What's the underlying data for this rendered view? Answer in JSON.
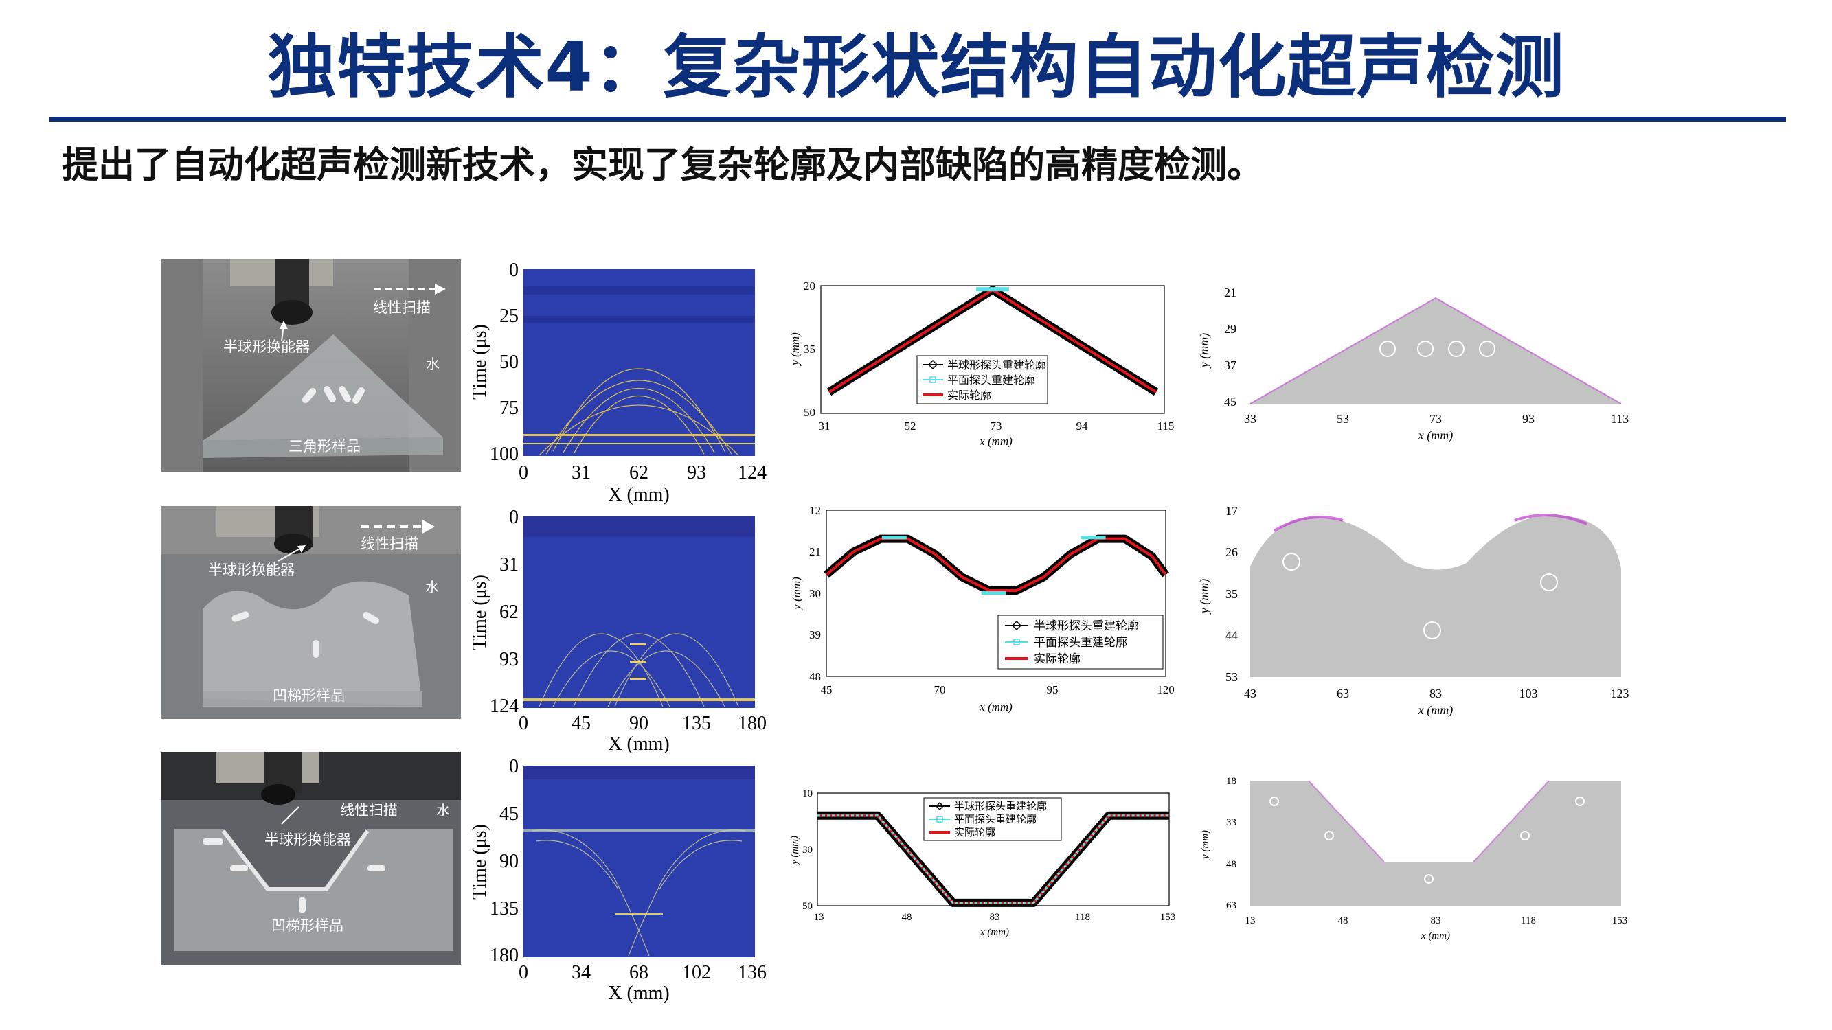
{
  "slide": {
    "title": "独特技术4：复杂形状结构自动化超声检测",
    "subtitle": "提出了自动化超声检测新技术，实现了复杂轮廓及内部缺陷的高精度检测。"
  },
  "colors": {
    "title": "#0b2f7a",
    "rule": "#0b2f7a",
    "bscan_bg": "#2c3dad",
    "actual_profile": "#e0151b",
    "planar_probe": "#4fe3e8",
    "defect": "#c23ad6"
  },
  "rows": [
    {
      "photo": {
        "scan_label": "线性扫描",
        "probe_label": "半球形换能器",
        "water_label": "水",
        "sample_label": "三角形样品"
      },
      "bscan": {
        "xlabel": "X (mm)",
        "ylabel": "Time (μs)",
        "xticks": [
          "0",
          "31",
          "62",
          "93",
          "124"
        ],
        "yticks": [
          "0",
          "25",
          "50",
          "75",
          "100"
        ]
      },
      "chart_data": {
        "type": "line",
        "xlabel": "x (mm)",
        "ylabel": "y (mm)",
        "xticks": [
          "31",
          "52",
          "73",
          "94",
          "115"
        ],
        "yticks": [
          "20",
          "35",
          "50"
        ],
        "xlim": [
          31,
          115
        ],
        "ylim": [
          50,
          20
        ],
        "series": [
          {
            "name": "半球形探头重建轮廓",
            "x": [
              33,
              73,
              113
            ],
            "y": [
              45,
              21,
              45
            ]
          },
          {
            "name": "平面探头重建轮廓",
            "x": [
              69,
              77
            ],
            "y": [
              21,
              21
            ]
          },
          {
            "name": "实际轮廓",
            "x": [
              33,
              73,
              113
            ],
            "y": [
              45,
              21,
              45
            ]
          }
        ]
      },
      "image": {
        "xlabel": "x (mm)",
        "ylabel": "y (mm)",
        "xticks": [
          "33",
          "53",
          "73",
          "93",
          "113"
        ],
        "yticks": [
          "21",
          "29",
          "37",
          "45"
        ]
      }
    },
    {
      "photo": {
        "scan_label": "线性扫描",
        "probe_label": "半球形换能器",
        "water_label": "水",
        "sample_label": "凹梯形样品"
      },
      "bscan": {
        "xlabel": "X (mm)",
        "ylabel": "Time (μs)",
        "xticks": [
          "0",
          "45",
          "90",
          "135",
          "180"
        ],
        "yticks": [
          "0",
          "31",
          "62",
          "93",
          "124"
        ]
      },
      "chart_data": {
        "type": "line",
        "xlabel": "x (mm)",
        "ylabel": "y (mm)",
        "xticks": [
          "45",
          "70",
          "95",
          "120"
        ],
        "yticks": [
          "12",
          "21",
          "30",
          "39",
          "48"
        ],
        "xlim": [
          45,
          120
        ],
        "ylim": [
          48,
          12
        ],
        "series": [
          {
            "name": "半球形探头重建轮廓",
            "x": [
              45,
              51,
              57,
              63,
              69,
              75,
              81,
              87,
              93,
              99,
              105,
              111,
              117,
              120
            ],
            "y": [
              26,
              21,
              18.2,
              18.2,
              21.5,
              26.5,
              29.4,
              29.4,
              26.5,
              21.5,
              18.2,
              18.2,
              22,
              26
            ]
          },
          {
            "name": "平面探头重建轮廓",
            "x": [
              60,
              82,
              104
            ],
            "y": [
              18,
              30,
              18
            ]
          },
          {
            "name": "实际轮廓",
            "x": [
              45,
              51,
              57,
              63,
              69,
              75,
              81,
              87,
              93,
              99,
              105,
              111,
              117,
              120
            ],
            "y": [
              26,
              21,
              18.2,
              18.2,
              21.5,
              26.5,
              29.4,
              29.4,
              26.5,
              21.5,
              18.2,
              18.2,
              22,
              26
            ]
          }
        ]
      },
      "image": {
        "xlabel": "x (mm)",
        "ylabel": "y (mm)",
        "xticks": [
          "43",
          "63",
          "83",
          "103",
          "123"
        ],
        "yticks": [
          "17",
          "26",
          "35",
          "44",
          "53"
        ]
      }
    },
    {
      "photo": {
        "scan_label": "线性扫描",
        "probe_label": "半球形换能器",
        "water_label": "水",
        "sample_label": "凹梯形样品"
      },
      "bscan": {
        "xlabel": "X (mm)",
        "ylabel": "Time (μs)",
        "xticks": [
          "0",
          "34",
          "68",
          "102",
          "136"
        ],
        "yticks": [
          "0",
          "45",
          "90",
          "135",
          "180"
        ]
      },
      "chart_data": {
        "type": "line",
        "xlabel": "x (mm)",
        "ylabel": "y (mm)",
        "xticks": [
          "13",
          "48",
          "83",
          "118",
          "153"
        ],
        "yticks": [
          "10",
          "30",
          "50"
        ],
        "xlim": [
          13,
          153
        ],
        "ylim": [
          50,
          10
        ],
        "series": [
          {
            "name": "半球形探头重建轮廓",
            "x": [
              13,
              37,
              67,
              99,
              129,
              153
            ],
            "y": [
              18,
              18,
              49,
              49,
              18,
              18
            ]
          },
          {
            "name": "平面探头重建轮廓",
            "x": [
              13,
              37,
              67,
              99,
              129,
              153
            ],
            "y": [
              18,
              18,
              49,
              49,
              18,
              18
            ]
          },
          {
            "name": "实际轮廓",
            "x": [
              13,
              37,
              67,
              99,
              129,
              153
            ],
            "y": [
              18,
              18,
              49,
              49,
              18,
              18
            ]
          }
        ]
      },
      "image": {
        "xlabel": "x (mm)",
        "ylabel": "y (mm)",
        "xticks": [
          "13",
          "48",
          "83",
          "118",
          "153"
        ],
        "yticks": [
          "18",
          "33",
          "48",
          "63"
        ]
      }
    }
  ]
}
